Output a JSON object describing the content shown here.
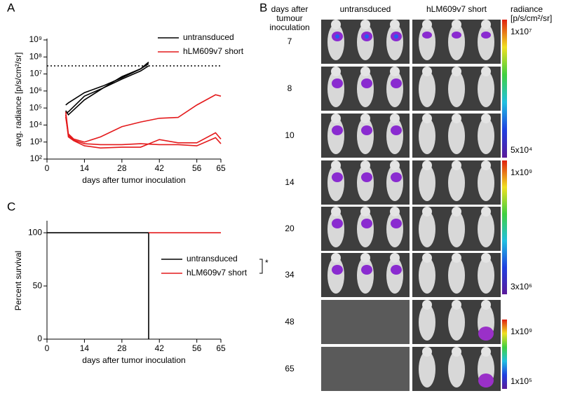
{
  "chart_data": [
    {
      "type": "line",
      "panel": "A",
      "ylabel": "avg. radiance  [p/s/cm²/sr]",
      "xlabel": "days after tumor inoculation",
      "log_y": true,
      "xlim": [
        0,
        65
      ],
      "xticks": [
        0,
        14,
        28,
        42,
        56,
        65
      ],
      "ylim": [
        100,
        1000000000
      ],
      "yticks": [
        {
          "value": 100,
          "label": "10²"
        },
        {
          "value": 1000,
          "label": "10³"
        },
        {
          "value": 10000,
          "label": "10⁴"
        },
        {
          "value": 100000,
          "label": "10⁵"
        },
        {
          "value": 1000000,
          "label": "10⁶"
        },
        {
          "value": 10000000,
          "label": "10⁷"
        },
        {
          "value": 100000000,
          "label": "10⁸"
        },
        {
          "value": 1000000000,
          "label": "10⁹"
        }
      ],
      "threshold": 30000000,
      "series": [
        {
          "name": "untransduced",
          "color": "#000000",
          "lines": [
            {
              "x": [
                7,
                8,
                14,
                21,
                28,
                35,
                38
              ],
              "values": [
                150000,
                200000,
                800000,
                2000000,
                6000000,
                20000000,
                50000000
              ]
            },
            {
              "x": [
                7,
                8,
                14,
                21,
                28,
                35,
                38
              ],
              "values": [
                70000,
                40000,
                300000,
                1500000,
                5000000,
                15000000,
                30000000
              ]
            },
            {
              "x": [
                7,
                8,
                14,
                21,
                28,
                35,
                38
              ],
              "values": [
                50000,
                60000,
                500000,
                1500000,
                7000000,
                20000000,
                40000000
              ]
            }
          ]
        },
        {
          "name": "hLM609v7 short",
          "color": "#e41a1c",
          "lines": [
            {
              "x": [
                7,
                8,
                10,
                14,
                20,
                28,
                35,
                42,
                49,
                56,
                63,
                65
              ],
              "values": [
                60000,
                3000,
                1500,
                1000,
                2000,
                8000,
                15000,
                25000,
                28000,
                150000,
                600000,
                500000
              ]
            },
            {
              "x": [
                7,
                8,
                10,
                14,
                20,
                28,
                35,
                42,
                49,
                56,
                63,
                65
              ],
              "values": [
                40000,
                2000,
                1200,
                600,
                450,
                500,
                500,
                1400,
                900,
                900,
                3500,
                1500
              ]
            },
            {
              "x": [
                7,
                8,
                10,
                14,
                20,
                28,
                35,
                42,
                49,
                56,
                63,
                65
              ],
              "values": [
                30000,
                2500,
                1300,
                800,
                700,
                700,
                800,
                700,
                700,
                600,
                1800,
                800
              ]
            }
          ]
        }
      ]
    },
    {
      "type": "line",
      "panel": "C",
      "ylabel": "Percent survival",
      "xlabel": "days after tumor inoculation",
      "log_y": false,
      "xlim": [
        0,
        65
      ],
      "xticks": [
        0,
        14,
        28,
        42,
        56,
        65
      ],
      "ylim": [
        0,
        110
      ],
      "yticks": [
        0,
        50,
        100
      ],
      "annotation": "*",
      "series": [
        {
          "name": "untransduced",
          "color": "#000000",
          "lines": [
            {
              "x": [
                0,
                38,
                38
              ],
              "values": [
                100,
                100,
                0
              ]
            }
          ]
        },
        {
          "name": "hLM609v7 short",
          "color": "#e41a1c",
          "lines": [
            {
              "x": [
                38,
                65
              ],
              "values": [
                100,
                100
              ]
            }
          ]
        }
      ]
    }
  ],
  "panel_b": {
    "label": "B",
    "row_header": [
      "days after",
      "tumour",
      "inoculation"
    ],
    "columns": [
      "untransduced",
      "hLM609v7 short"
    ],
    "rows": [
      "7",
      "8",
      "10",
      "14",
      "20",
      "34",
      "48",
      "65"
    ],
    "scale_title": [
      "radiance",
      "[p/s/cm²/sr]"
    ],
    "scales": [
      {
        "max": "1x10⁷",
        "min": "5x10⁴"
      },
      {
        "max": "1x10⁹",
        "min": "3x10⁶"
      },
      {
        "max": "1x10⁹",
        "min": "1x10⁵"
      }
    ]
  }
}
